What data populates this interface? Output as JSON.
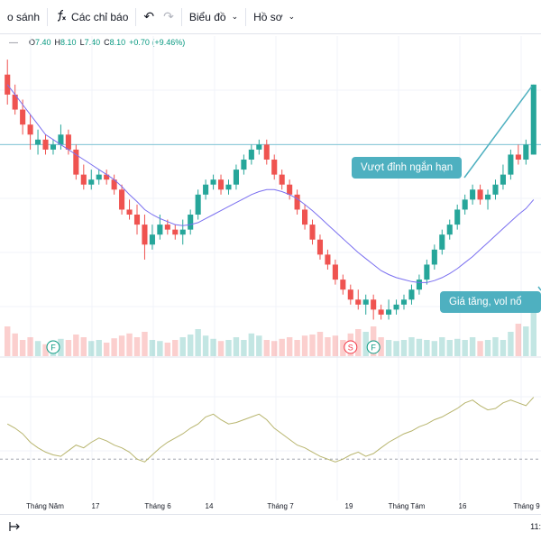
{
  "toolbar": {
    "compare_label": "o sánh",
    "indicators_label": "Các chỉ báo",
    "indicators_icon": "function-icon",
    "undo_icon": "undo-icon",
    "redo_icon": "redo-icon",
    "chart_type_label": "Biểu đồ",
    "profile_label": "Hồ sơ"
  },
  "legend": {
    "o_label": "O",
    "o_value": "7.40",
    "h_label": "H",
    "h_value": "8.10",
    "l_label": "L",
    "l_value": "7.40",
    "c_label": "C",
    "c_value": "8.10",
    "change": "+0.70 (+9.46%)"
  },
  "annotations": {
    "breakout": "Vượt đỉnh ngắn hạn",
    "volume": "Giá tăng, vol nổ"
  },
  "events": [
    {
      "type": "F",
      "color": "#089981"
    },
    {
      "type": "S",
      "color": "#f23645"
    },
    {
      "type": "F",
      "color": "#089981"
    }
  ],
  "x_axis": {
    "labels": [
      "Tháng Năm",
      "17",
      "Tháng 6",
      "14",
      "Tháng 7",
      "19",
      "Tháng Tám",
      "16",
      "Tháng 9"
    ]
  },
  "status": {
    "clock": "11:"
  },
  "colors": {
    "up": "#26a69a",
    "down": "#ef5350",
    "ma": "#7a6ff0",
    "rsi": "#b8b56e",
    "callout": "#4eb0c0",
    "level": "#7fc4d4"
  },
  "chart_data": {
    "type": "candlestick",
    "candles": [
      [
        8.2,
        8.0,
        8.35,
        7.9
      ],
      [
        8.0,
        7.85,
        8.1,
        7.8
      ],
      [
        7.85,
        7.7,
        7.95,
        7.6
      ],
      [
        7.7,
        7.6,
        7.8,
        7.45
      ],
      [
        7.5,
        7.55,
        7.65,
        7.4
      ],
      [
        7.55,
        7.45,
        7.6,
        7.4
      ],
      [
        7.45,
        7.5,
        7.55,
        7.4
      ],
      [
        7.5,
        7.6,
        7.7,
        7.45
      ],
      [
        7.6,
        7.45,
        7.65,
        7.4
      ],
      [
        7.45,
        7.2,
        7.5,
        7.15
      ],
      [
        7.2,
        7.1,
        7.3,
        7.05
      ],
      [
        7.1,
        7.15,
        7.25,
        7.05
      ],
      [
        7.15,
        7.2,
        7.25,
        7.1
      ],
      [
        7.2,
        7.15,
        7.25,
        7.1
      ],
      [
        7.15,
        7.05,
        7.2,
        7.0
      ],
      [
        7.05,
        6.85,
        7.1,
        6.8
      ],
      [
        6.85,
        6.8,
        6.95,
        6.75
      ],
      [
        6.8,
        6.7,
        6.9,
        6.6
      ],
      [
        6.7,
        6.5,
        6.8,
        6.35
      ],
      [
        6.5,
        6.6,
        6.7,
        6.45
      ],
      [
        6.6,
        6.7,
        6.8,
        6.55
      ],
      [
        6.7,
        6.65,
        6.75,
        6.6
      ],
      [
        6.65,
        6.6,
        6.7,
        6.55
      ],
      [
        6.6,
        6.65,
        6.75,
        6.5
      ],
      [
        6.65,
        6.8,
        6.85,
        6.6
      ],
      [
        6.8,
        7.0,
        7.05,
        6.75
      ],
      [
        7.0,
        7.1,
        7.15,
        6.95
      ],
      [
        7.1,
        7.15,
        7.2,
        7.05
      ],
      [
        7.15,
        7.05,
        7.2,
        7.0
      ],
      [
        7.05,
        7.1,
        7.15,
        7.0
      ],
      [
        7.1,
        7.25,
        7.3,
        7.05
      ],
      [
        7.25,
        7.35,
        7.4,
        7.2
      ],
      [
        7.35,
        7.45,
        7.5,
        7.3
      ],
      [
        7.45,
        7.5,
        7.55,
        7.4
      ],
      [
        7.5,
        7.35,
        7.55,
        7.3
      ],
      [
        7.35,
        7.2,
        7.4,
        7.15
      ],
      [
        7.2,
        7.1,
        7.25,
        7.05
      ],
      [
        7.1,
        7.0,
        7.15,
        6.95
      ],
      [
        7.0,
        6.85,
        7.05,
        6.8
      ],
      [
        6.85,
        6.7,
        6.9,
        6.65
      ],
      [
        6.7,
        6.55,
        6.75,
        6.5
      ],
      [
        6.55,
        6.4,
        6.6,
        6.35
      ],
      [
        6.4,
        6.3,
        6.45,
        6.25
      ],
      [
        6.3,
        6.15,
        6.35,
        6.1
      ],
      [
        6.15,
        6.05,
        6.2,
        6.0
      ],
      [
        6.05,
        5.95,
        6.1,
        5.9
      ],
      [
        5.95,
        5.9,
        6.05,
        5.85
      ],
      [
        5.9,
        5.95,
        6.0,
        5.8
      ],
      [
        5.95,
        5.85,
        6.0,
        5.75
      ],
      [
        5.85,
        5.8,
        5.9,
        5.75
      ],
      [
        5.8,
        5.85,
        5.95,
        5.75
      ],
      [
        5.85,
        5.9,
        5.95,
        5.8
      ],
      [
        5.9,
        5.95,
        6.0,
        5.85
      ],
      [
        5.95,
        6.05,
        6.1,
        5.9
      ],
      [
        6.05,
        6.15,
        6.2,
        6.0
      ],
      [
        6.15,
        6.3,
        6.35,
        6.1
      ],
      [
        6.3,
        6.45,
        6.5,
        6.25
      ],
      [
        6.45,
        6.6,
        6.65,
        6.4
      ],
      [
        6.6,
        6.7,
        6.75,
        6.55
      ],
      [
        6.7,
        6.85,
        6.9,
        6.65
      ],
      [
        6.85,
        6.95,
        7.0,
        6.8
      ],
      [
        6.95,
        7.05,
        7.1,
        6.9
      ],
      [
        7.05,
        6.95,
        7.1,
        6.9
      ],
      [
        6.95,
        7.0,
        7.05,
        6.85
      ],
      [
        7.0,
        7.1,
        7.15,
        6.95
      ],
      [
        7.1,
        7.2,
        7.3,
        7.05
      ],
      [
        7.2,
        7.4,
        7.45,
        7.15
      ],
      [
        7.4,
        7.35,
        7.5,
        7.3
      ],
      [
        7.35,
        7.5,
        7.55,
        7.3
      ],
      [
        7.4,
        8.1,
        8.1,
        7.4
      ]
    ],
    "ma": [
      8.1,
      8.0,
      7.9,
      7.8,
      7.7,
      7.6,
      7.55,
      7.5,
      7.45,
      7.4,
      7.35,
      7.3,
      7.25,
      7.2,
      7.15,
      7.08,
      7.0,
      6.93,
      6.85,
      6.8,
      6.76,
      6.73,
      6.7,
      6.69,
      6.7,
      6.72,
      6.76,
      6.8,
      6.84,
      6.88,
      6.92,
      6.96,
      7.0,
      7.03,
      7.05,
      7.05,
      7.03,
      7.0,
      6.96,
      6.9,
      6.84,
      6.77,
      6.7,
      6.63,
      6.56,
      6.49,
      6.42,
      6.36,
      6.3,
      6.24,
      6.2,
      6.17,
      6.15,
      6.13,
      6.12,
      6.12,
      6.14,
      6.17,
      6.21,
      6.26,
      6.32,
      6.38,
      6.45,
      6.52,
      6.59,
      6.66,
      6.73,
      6.8,
      6.86,
      6.95
    ],
    "volume": [
      0.55,
      0.42,
      0.3,
      0.35,
      0.28,
      0.22,
      0.25,
      0.32,
      0.3,
      0.4,
      0.35,
      0.28,
      0.3,
      0.25,
      0.33,
      0.38,
      0.42,
      0.35,
      0.45,
      0.3,
      0.28,
      0.25,
      0.3,
      0.35,
      0.4,
      0.5,
      0.38,
      0.32,
      0.28,
      0.3,
      0.35,
      0.3,
      0.42,
      0.38,
      0.3,
      0.28,
      0.32,
      0.35,
      0.3,
      0.38,
      0.4,
      0.45,
      0.35,
      0.38,
      0.3,
      0.42,
      0.5,
      0.45,
      0.55,
      0.35,
      0.3,
      0.28,
      0.3,
      0.35,
      0.32,
      0.3,
      0.28,
      0.35,
      0.3,
      0.32,
      0.3,
      0.35,
      0.28,
      0.3,
      0.35,
      0.3,
      0.45,
      0.6,
      0.55,
      0.95
    ],
    "rsi": [
      55,
      52,
      48,
      42,
      38,
      35,
      33,
      32,
      36,
      40,
      38,
      42,
      45,
      43,
      40,
      38,
      35,
      30,
      28,
      33,
      38,
      42,
      45,
      48,
      52,
      55,
      60,
      62,
      58,
      55,
      56,
      58,
      60,
      62,
      58,
      52,
      48,
      44,
      40,
      38,
      35,
      32,
      30,
      28,
      30,
      33,
      35,
      32,
      34,
      38,
      42,
      45,
      48,
      50,
      53,
      55,
      58,
      60,
      63,
      66,
      70,
      72,
      68,
      65,
      66,
      70,
      72,
      70,
      68,
      74
    ],
    "resistance": 7.5
  }
}
